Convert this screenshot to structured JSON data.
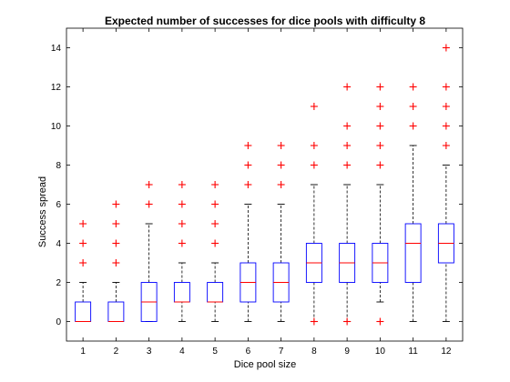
{
  "chart_data": {
    "type": "boxplot",
    "title": "Expected number of successes for dice pools with difficulty 8",
    "xlabel": "Dice pool size",
    "ylabel": "Success spread",
    "categories": [
      "1",
      "2",
      "3",
      "4",
      "5",
      "6",
      "7",
      "8",
      "9",
      "10",
      "11",
      "12"
    ],
    "ylim": [
      -1,
      15
    ],
    "yticks": [
      "0",
      "2",
      "4",
      "6",
      "8",
      "10",
      "12",
      "14"
    ],
    "grid": false,
    "colors": {
      "box": "#0000ff",
      "median": "#ff0000",
      "whisker": "#000000",
      "outlier": "#ff0000"
    },
    "boxes": [
      {
        "category": "1",
        "whisker_low": 0,
        "q1": 0,
        "median": 0,
        "q3": 1,
        "whisker_high": 2,
        "outliers": [
          3,
          4,
          5
        ]
      },
      {
        "category": "2",
        "whisker_low": 0,
        "q1": 0,
        "median": 0,
        "q3": 1,
        "whisker_high": 2,
        "outliers": [
          3,
          4,
          5,
          6
        ]
      },
      {
        "category": "3",
        "whisker_low": 0,
        "q1": 0,
        "median": 1,
        "q3": 2,
        "whisker_high": 5,
        "outliers": [
          6,
          7
        ]
      },
      {
        "category": "4",
        "whisker_low": 0,
        "q1": 1,
        "median": 1,
        "q3": 2,
        "whisker_high": 3,
        "outliers": [
          4,
          5,
          6,
          7
        ]
      },
      {
        "category": "5",
        "whisker_low": 0,
        "q1": 1,
        "median": 1,
        "q3": 2,
        "whisker_high": 3,
        "outliers": [
          4,
          5,
          6,
          7
        ]
      },
      {
        "category": "6",
        "whisker_low": 0,
        "q1": 1,
        "median": 2,
        "q3": 3,
        "whisker_high": 6,
        "outliers": [
          7,
          8,
          9
        ]
      },
      {
        "category": "7",
        "whisker_low": 0,
        "q1": 1,
        "median": 2,
        "q3": 3,
        "whisker_high": 6,
        "outliers": [
          7,
          8,
          9
        ]
      },
      {
        "category": "8",
        "whisker_low": 0,
        "q1": 2,
        "median": 3,
        "q3": 4,
        "whisker_high": 7,
        "outliers": [
          0,
          8,
          9,
          11
        ]
      },
      {
        "category": "9",
        "whisker_low": 0,
        "q1": 2,
        "median": 3,
        "q3": 4,
        "whisker_high": 7,
        "outliers": [
          0,
          8,
          9,
          10,
          12
        ]
      },
      {
        "category": "10",
        "whisker_low": 1,
        "q1": 2,
        "median": 3,
        "q3": 4,
        "whisker_high": 7,
        "outliers": [
          0,
          8,
          9,
          10,
          11,
          12
        ]
      },
      {
        "category": "11",
        "whisker_low": 0,
        "q1": 2,
        "median": 4,
        "q3": 5,
        "whisker_high": 9,
        "outliers": [
          10,
          11,
          12
        ]
      },
      {
        "category": "12",
        "whisker_low": 0,
        "q1": 3,
        "median": 4,
        "q3": 5,
        "whisker_high": 8,
        "outliers": [
          9,
          10,
          11,
          12,
          14
        ]
      }
    ]
  }
}
